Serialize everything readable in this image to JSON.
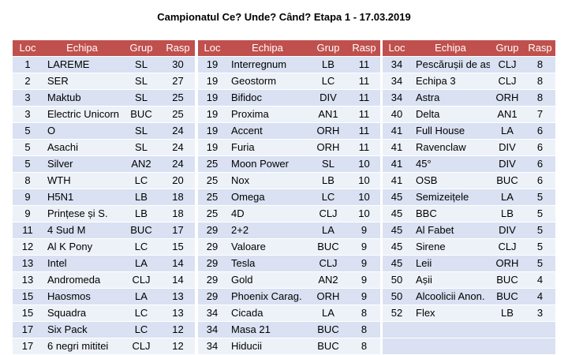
{
  "title": "Campionatul Ce? Unde? Când? Etapa 1 - 17.03.2019",
  "headers": {
    "loc": "Loc",
    "echipa": "Echipa",
    "grup": "Grup",
    "rasp": "Rasp"
  },
  "tables": [
    {
      "rows": [
        {
          "loc": "1",
          "team": "LAREME",
          "group": "SL",
          "answers": "30"
        },
        {
          "loc": "2",
          "team": "SER",
          "group": "SL",
          "answers": "27"
        },
        {
          "loc": "3",
          "team": "Maktub",
          "group": "SL",
          "answers": "25"
        },
        {
          "loc": "3",
          "team": "Electric Unicorn",
          "group": "BUC",
          "answers": "25"
        },
        {
          "loc": "5",
          "team": "O",
          "group": "SL",
          "answers": "24"
        },
        {
          "loc": "5",
          "team": "Asachi",
          "group": "SL",
          "answers": "24"
        },
        {
          "loc": "5",
          "team": "Silver",
          "group": "AN2",
          "answers": "24"
        },
        {
          "loc": "8",
          "team": "WTH",
          "group": "LC",
          "answers": "20"
        },
        {
          "loc": "9",
          "team": "H5N1",
          "group": "LB",
          "answers": "18"
        },
        {
          "loc": "9",
          "team": "Prințese și S.",
          "group": "LB",
          "answers": "18"
        },
        {
          "loc": "11",
          "team": "4 Sud M",
          "group": "BUC",
          "answers": "17"
        },
        {
          "loc": "12",
          "team": "Al K Pony",
          "group": "LC",
          "answers": "15"
        },
        {
          "loc": "13",
          "team": "Intel",
          "group": "LA",
          "answers": "14"
        },
        {
          "loc": "13",
          "team": "Andromeda",
          "group": "CLJ",
          "answers": "14"
        },
        {
          "loc": "15",
          "team": "Haosmos",
          "group": "LA",
          "answers": "13"
        },
        {
          "loc": "15",
          "team": "Squadra",
          "group": "LC",
          "answers": "13"
        },
        {
          "loc": "17",
          "team": "Six Pack",
          "group": "LC",
          "answers": "12"
        },
        {
          "loc": "17",
          "team": "6 negri mititei",
          "group": "CLJ",
          "answers": "12"
        }
      ]
    },
    {
      "rows": [
        {
          "loc": "19",
          "team": "Interregnum",
          "group": "LB",
          "answers": "11"
        },
        {
          "loc": "19",
          "team": "Geostorm",
          "group": "LC",
          "answers": "11"
        },
        {
          "loc": "19",
          "team": "Bifidoc",
          "group": "DIV",
          "answers": "11"
        },
        {
          "loc": "19",
          "team": "Proxima",
          "group": "AN1",
          "answers": "11"
        },
        {
          "loc": "19",
          "team": "Accent",
          "group": "ORH",
          "answers": "11"
        },
        {
          "loc": "19",
          "team": "Furia",
          "group": "ORH",
          "answers": "11"
        },
        {
          "loc": "25",
          "team": "Moon Power",
          "group": "SL",
          "answers": "10"
        },
        {
          "loc": "25",
          "team": "Nox",
          "group": "LB",
          "answers": "10"
        },
        {
          "loc": "25",
          "team": "Omega",
          "group": "LC",
          "answers": "10"
        },
        {
          "loc": "25",
          "team": "4D",
          "group": "CLJ",
          "answers": "10"
        },
        {
          "loc": "29",
          "team": "2+2",
          "group": "LA",
          "answers": "9"
        },
        {
          "loc": "29",
          "team": "Valoare",
          "group": "BUC",
          "answers": "9"
        },
        {
          "loc": "29",
          "team": "Tesla",
          "group": "CLJ",
          "answers": "9"
        },
        {
          "loc": "29",
          "team": "Gold",
          "group": "AN2",
          "answers": "9"
        },
        {
          "loc": "29",
          "team": "Phoenix Carag.",
          "group": "ORH",
          "answers": "9"
        },
        {
          "loc": "34",
          "team": "Cicada",
          "group": "LA",
          "answers": "8"
        },
        {
          "loc": "34",
          "team": "Masa 21",
          "group": "BUC",
          "answers": "8"
        },
        {
          "loc": "34",
          "team": "Hiducii",
          "group": "BUC",
          "answers": "8"
        }
      ]
    },
    {
      "rows": [
        {
          "loc": "34",
          "team": "Pescărușii de as",
          "group": "CLJ",
          "answers": "8"
        },
        {
          "loc": "34",
          "team": "Echipa 3",
          "group": "CLJ",
          "answers": "8"
        },
        {
          "loc": "34",
          "team": "Astra",
          "group": "ORH",
          "answers": "8"
        },
        {
          "loc": "40",
          "team": "Delta",
          "group": "AN1",
          "answers": "7"
        },
        {
          "loc": "41",
          "team": "Full House",
          "group": "LA",
          "answers": "6"
        },
        {
          "loc": "41",
          "team": "Ravenclaw",
          "group": "DIV",
          "answers": "6"
        },
        {
          "loc": "41",
          "team": "45°",
          "group": "DIV",
          "answers": "6"
        },
        {
          "loc": "41",
          "team": "OSB",
          "group": "BUC",
          "answers": "6"
        },
        {
          "loc": "45",
          "team": "Semizeițele",
          "group": "LA",
          "answers": "5"
        },
        {
          "loc": "45",
          "team": "BBC",
          "group": "LB",
          "answers": "5"
        },
        {
          "loc": "45",
          "team": "Al Fabet",
          "group": "DIV",
          "answers": "5"
        },
        {
          "loc": "45",
          "team": "Sirene",
          "group": "CLJ",
          "answers": "5"
        },
        {
          "loc": "45",
          "team": "Leii",
          "group": "ORH",
          "answers": "5"
        },
        {
          "loc": "50",
          "team": "Așii",
          "group": "BUC",
          "answers": "4"
        },
        {
          "loc": "50",
          "team": "Alcoolicii Anon.",
          "group": "BUC",
          "answers": "4"
        },
        {
          "loc": "52",
          "team": "Flex",
          "group": "LB",
          "answers": "3"
        }
      ]
    }
  ]
}
